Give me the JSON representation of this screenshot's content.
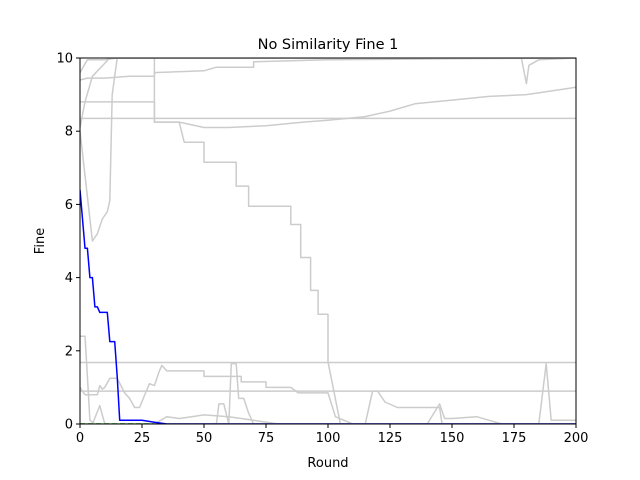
{
  "chart_data": {
    "type": "line",
    "title": "No Similarity Fine 1",
    "xlabel": "Round",
    "ylabel": "Fine",
    "xlim": [
      0,
      200
    ],
    "ylim": [
      0,
      10
    ],
    "x_ticks": [
      0,
      25,
      50,
      75,
      100,
      125,
      150,
      175,
      200
    ],
    "y_ticks": [
      0,
      2,
      4,
      6,
      8,
      10
    ],
    "grid": false,
    "legend": "none",
    "colors": {
      "background_series": "#cccccc",
      "main_series": "#0000ff",
      "dashed_series": "#00a000"
    },
    "background_series": [
      {
        "points": [
          [
            0,
            8.35
          ],
          [
            200,
            8.35
          ]
        ]
      },
      {
        "points": [
          [
            0,
            1.68
          ],
          [
            200,
            1.68
          ]
        ]
      },
      {
        "points": [
          [
            0,
            0.9
          ],
          [
            200,
            0.9
          ]
        ]
      },
      {
        "points": [
          [
            0,
            8.8
          ],
          [
            10,
            8.8
          ],
          [
            25,
            8.8
          ],
          [
            30,
            8.8
          ],
          [
            30,
            8.25
          ],
          [
            40,
            8.25
          ],
          [
            50,
            8.1
          ],
          [
            60,
            8.1
          ],
          [
            75,
            8.15
          ],
          [
            90,
            8.25
          ],
          [
            100,
            8.3
          ],
          [
            115,
            8.4
          ],
          [
            125,
            8.55
          ],
          [
            135,
            8.75
          ],
          [
            150,
            8.85
          ],
          [
            165,
            8.95
          ],
          [
            180,
            9.0
          ],
          [
            195,
            9.15
          ],
          [
            200,
            9.2
          ]
        ]
      },
      {
        "points": [
          [
            0,
            9.4
          ],
          [
            3,
            9.45
          ],
          [
            10,
            9.45
          ],
          [
            20,
            9.5
          ],
          [
            30,
            9.5
          ],
          [
            30,
            9.6
          ],
          [
            50,
            9.65
          ],
          [
            55,
            9.75
          ],
          [
            70,
            9.75
          ],
          [
            70,
            9.9
          ],
          [
            100,
            9.95
          ],
          [
            150,
            9.98
          ],
          [
            200,
            10.0
          ]
        ]
      },
      {
        "points": [
          [
            0,
            9.6
          ],
          [
            3,
            9.95
          ],
          [
            10,
            9.95
          ],
          [
            15,
            10.0
          ],
          [
            200,
            10.0
          ]
        ]
      },
      {
        "points": [
          [
            0,
            8.1
          ],
          [
            2,
            8.8
          ],
          [
            5,
            9.5
          ],
          [
            12,
            10.0
          ],
          [
            175,
            10.0
          ],
          [
            178,
            10.0
          ],
          [
            180,
            9.3
          ],
          [
            181,
            9.8
          ],
          [
            185,
            9.95
          ],
          [
            200,
            10.0
          ]
        ]
      },
      {
        "points": [
          [
            0,
            8.0
          ],
          [
            5,
            5.0
          ],
          [
            7,
            5.2
          ],
          [
            9,
            5.6
          ],
          [
            11,
            5.8
          ],
          [
            12,
            6.1
          ],
          [
            13,
            9.0
          ],
          [
            15,
            10.0
          ],
          [
            30,
            10.0
          ],
          [
            30,
            8.25
          ],
          [
            40,
            8.25
          ],
          [
            42,
            7.7
          ],
          [
            50,
            7.7
          ],
          [
            50,
            7.15
          ],
          [
            63,
            7.15
          ],
          [
            63,
            6.5
          ],
          [
            68,
            6.5
          ],
          [
            68,
            5.95
          ],
          [
            85,
            5.95
          ],
          [
            85,
            5.45
          ],
          [
            89,
            5.45
          ],
          [
            89,
            4.55
          ],
          [
            93,
            4.55
          ],
          [
            93,
            3.65
          ],
          [
            96,
            3.65
          ],
          [
            96,
            3.0
          ],
          [
            100,
            3.0
          ],
          [
            100,
            1.7
          ],
          [
            105,
            0.0
          ],
          [
            200,
            0.0
          ]
        ]
      },
      {
        "points": [
          [
            0,
            2.4
          ],
          [
            2,
            2.4
          ],
          [
            3,
            1.3
          ],
          [
            4,
            0.1
          ],
          [
            6,
            0.0
          ],
          [
            200,
            0.0
          ]
        ]
      },
      {
        "points": [
          [
            0,
            1.0
          ],
          [
            2,
            0.8
          ],
          [
            7,
            0.8
          ],
          [
            8,
            1.05
          ],
          [
            9,
            0.95
          ],
          [
            10,
            1.0
          ],
          [
            12,
            1.25
          ],
          [
            15,
            1.25
          ],
          [
            18,
            0.85
          ],
          [
            20,
            0.7
          ],
          [
            22,
            0.45
          ],
          [
            24,
            0.45
          ],
          [
            28,
            1.1
          ],
          [
            30,
            1.05
          ],
          [
            32,
            1.45
          ],
          [
            33,
            1.6
          ],
          [
            35,
            1.45
          ],
          [
            50,
            1.45
          ],
          [
            50,
            1.3
          ],
          [
            65,
            1.3
          ],
          [
            65,
            1.15
          ],
          [
            75,
            1.15
          ],
          [
            75,
            1.0
          ],
          [
            85,
            1.0
          ],
          [
            88,
            0.85
          ],
          [
            100,
            0.85
          ],
          [
            103,
            0.2
          ],
          [
            110,
            0.0
          ],
          [
            200,
            0.0
          ]
        ]
      },
      {
        "points": [
          [
            0,
            0.0
          ],
          [
            5,
            0.0
          ],
          [
            8,
            0.5
          ],
          [
            10,
            0.0
          ],
          [
            55,
            0.0
          ],
          [
            56,
            0.55
          ],
          [
            58,
            0.55
          ],
          [
            60,
            0.0
          ],
          [
            61,
            1.65
          ],
          [
            63,
            1.65
          ],
          [
            64,
            0.7
          ],
          [
            66,
            0.7
          ],
          [
            68,
            0.3
          ],
          [
            70,
            0.0
          ],
          [
            115,
            0.0
          ],
          [
            118,
            0.9
          ],
          [
            120,
            0.9
          ],
          [
            123,
            0.6
          ],
          [
            128,
            0.45
          ],
          [
            140,
            0.45
          ],
          [
            145,
            0.45
          ],
          [
            146,
            0.0
          ],
          [
            200,
            0.0
          ]
        ]
      },
      {
        "points": [
          [
            0,
            0.0
          ],
          [
            30,
            0.0
          ],
          [
            35,
            0.2
          ],
          [
            40,
            0.15
          ],
          [
            45,
            0.2
          ],
          [
            50,
            0.25
          ],
          [
            60,
            0.2
          ],
          [
            70,
            0.1
          ],
          [
            80,
            0.0
          ],
          [
            140,
            0.0
          ],
          [
            145,
            0.55
          ],
          [
            147,
            0.15
          ],
          [
            150,
            0.15
          ],
          [
            160,
            0.2
          ],
          [
            165,
            0.1
          ],
          [
            170,
            0.0
          ],
          [
            200,
            0.0
          ]
        ]
      },
      {
        "points": [
          [
            0,
            0.0
          ],
          [
            185,
            0.0
          ],
          [
            188,
            1.65
          ],
          [
            190,
            0.1
          ],
          [
            200,
            0.1
          ]
        ]
      }
    ],
    "series": [
      {
        "points": [
          [
            0,
            6.4
          ],
          [
            1,
            5.6
          ],
          [
            2,
            4.8
          ],
          [
            3,
            4.8
          ],
          [
            4,
            4.0
          ],
          [
            5,
            4.0
          ],
          [
            6,
            3.2
          ],
          [
            7,
            3.2
          ],
          [
            8,
            3.05
          ],
          [
            11,
            3.05
          ],
          [
            12,
            2.25
          ],
          [
            14,
            2.25
          ],
          [
            15,
            1.3
          ],
          [
            16,
            0.1
          ],
          [
            20,
            0.1
          ],
          [
            25,
            0.1
          ],
          [
            30,
            0.05
          ],
          [
            35,
            0.0
          ],
          [
            200,
            0.0
          ]
        ]
      },
      {
        "dashed": true,
        "points": [
          [
            0,
            0.0
          ],
          [
            30,
            0.0
          ]
        ]
      }
    ]
  }
}
